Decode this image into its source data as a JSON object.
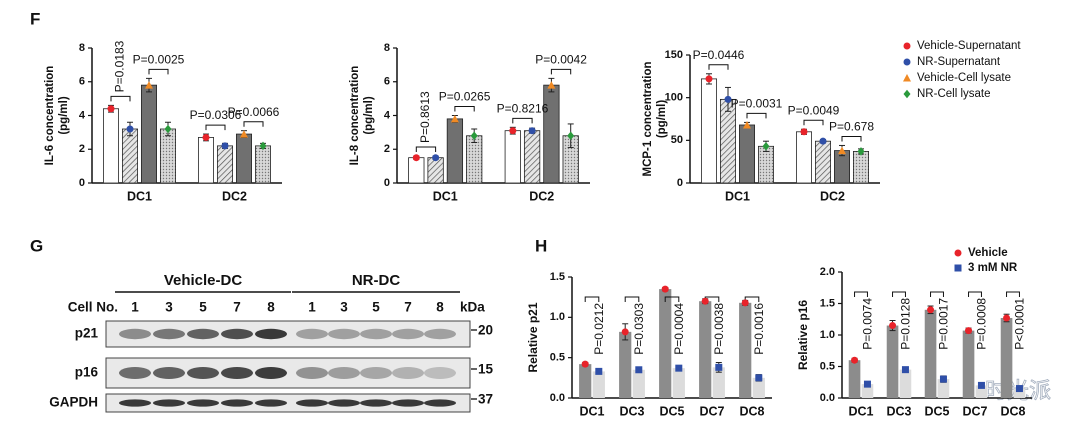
{
  "panel_labels": [
    "F",
    "G",
    "H"
  ],
  "watermark": "时光派",
  "chart_data": [
    {
      "type": "bar",
      "y_label": [
        "IL-6 concentration",
        "(pg/ml)"
      ],
      "categories": [
        "DC1",
        "DC2"
      ],
      "ylim": [
        0,
        8
      ],
      "yticks": [
        0,
        2,
        4,
        6,
        8
      ],
      "series": [
        {
          "color": "#e8232a",
          "fill": "#ffffff",
          "marker": "circle",
          "values": [
            4.4,
            2.7
          ],
          "errors": [
            0.2,
            0.2
          ]
        },
        {
          "color": "#2f4fa8",
          "fill": "hatched",
          "marker": "circle",
          "values": [
            3.2,
            2.2
          ],
          "errors": [
            0.4,
            0.15
          ]
        },
        {
          "color": "#f08a24",
          "fill": "#707070",
          "marker": "triangle",
          "values": [
            5.8,
            2.9
          ],
          "errors": [
            0.4,
            0.2
          ]
        },
        {
          "color": "#2a9a3c",
          "fill": "dotted",
          "marker": "diamond",
          "values": [
            3.2,
            2.2
          ],
          "errors": [
            0.4,
            0.15
          ]
        }
      ],
      "annotations": [
        "P=0.0183",
        "P=0.0025",
        "P=0.0306",
        "P=0.0066"
      ]
    },
    {
      "type": "bar",
      "y_label": [
        "IL-8 concentration",
        "(pg/ml)"
      ],
      "categories": [
        "DC1",
        "DC2"
      ],
      "ylim": [
        0,
        8
      ],
      "yticks": [
        0,
        2,
        4,
        6,
        8
      ],
      "series": [
        {
          "color": "#e8232a",
          "fill": "#ffffff",
          "marker": "circle",
          "values": [
            1.5,
            3.1
          ],
          "errors": [
            0.1,
            0.2
          ]
        },
        {
          "color": "#2f4fa8",
          "fill": "hatched",
          "marker": "circle",
          "values": [
            1.5,
            3.1
          ],
          "errors": [
            0.1,
            0.15
          ]
        },
        {
          "color": "#f08a24",
          "fill": "#707070",
          "marker": "triangle",
          "values": [
            3.8,
            5.8
          ],
          "errors": [
            0.2,
            0.4
          ]
        },
        {
          "color": "#2a9a3c",
          "fill": "dotted",
          "marker": "diamond",
          "values": [
            2.8,
            2.8
          ],
          "errors": [
            0.4,
            0.7
          ]
        }
      ],
      "annotations": [
        "P=0.8613",
        "P=0.0265",
        "P=0.8216",
        "P=0.0042"
      ]
    },
    {
      "type": "bar",
      "y_label": [
        "MCP-1 concentration",
        "(pg/ml)"
      ],
      "categories": [
        "DC1",
        "DC2"
      ],
      "ylim": [
        0,
        150
      ],
      "yticks": [
        0,
        50,
        100,
        150
      ],
      "legend": "right",
      "series": [
        {
          "name": "Vehicle-Supernatant",
          "color": "#e8232a",
          "fill": "#ffffff",
          "marker": "circle",
          "values": [
            122,
            60
          ],
          "errors": [
            6,
            3
          ]
        },
        {
          "name": "NR-Supernatant",
          "color": "#2f4fa8",
          "fill": "hatched",
          "marker": "circle",
          "values": [
            98,
            49
          ],
          "errors": [
            14,
            2
          ]
        },
        {
          "name": "Vehicle-Cell lysate",
          "color": "#f08a24",
          "fill": "#707070",
          "marker": "triangle",
          "values": [
            68,
            38
          ],
          "errors": [
            3,
            6
          ]
        },
        {
          "name": "NR-Cell lysate",
          "color": "#2a9a3c",
          "fill": "dotted",
          "marker": "diamond",
          "values": [
            43,
            37
          ],
          "errors": [
            6,
            3
          ]
        }
      ],
      "annotations": [
        "P=0.0446",
        "P=0.0031",
        "P=0.0049",
        "P=0.678"
      ]
    },
    {
      "type": "bar",
      "y_label": "Relative p21",
      "categories": [
        "DC1",
        "DC3",
        "DC5",
        "DC7",
        "DC8"
      ],
      "ylim": [
        0,
        1.5
      ],
      "yticks": [
        {
          "value": 0,
          "label": "0.0"
        },
        0.5,
        {
          "value": 1,
          "label": "1.0"
        },
        1.5
      ],
      "series": [
        {
          "color": "#e8232a",
          "fill": "#8c8c8c",
          "marker": "circle",
          "values": [
            0.42,
            0.82,
            1.35,
            1.2,
            1.18
          ],
          "errors": [
            0.02,
            0.1,
            0.02,
            0.03,
            0.03
          ]
        },
        {
          "color": "#2f4fa8",
          "fill": "#dcdcdc",
          "marker": "square",
          "values": [
            0.33,
            0.35,
            0.37,
            0.38,
            0.25
          ],
          "errors": [
            0.02,
            0.02,
            0.02,
            0.06,
            0.04
          ]
        }
      ],
      "annotations": [
        "P=0.0212",
        "P=0.0303",
        "P=0.0004",
        "P=0.0038",
        "P=0.0016"
      ]
    },
    {
      "type": "bar",
      "y_label": "Relative p16",
      "categories": [
        "DC1",
        "DC3",
        "DC5",
        "DC7",
        "DC8"
      ],
      "ylim": [
        0,
        2
      ],
      "yticks": [
        {
          "value": 0,
          "label": "0.0"
        },
        0.5,
        {
          "value": 1,
          "label": "1.0"
        },
        1.5,
        {
          "value": 2,
          "label": "2.0"
        }
      ],
      "legend": "upper right",
      "series": [
        {
          "name": "Vehicle",
          "color": "#e8232a",
          "fill": "#8c8c8c",
          "marker": "circle",
          "values": [
            0.6,
            1.15,
            1.4,
            1.07,
            1.27
          ],
          "errors": [
            0.03,
            0.08,
            0.06,
            0.04,
            0.06
          ]
        },
        {
          "name": "3 mM NR",
          "color": "#2f4fa8",
          "fill": "#dcdcdc",
          "marker": "square",
          "values": [
            0.22,
            0.45,
            0.3,
            0.2,
            0.15
          ],
          "errors": [
            0.02,
            0.03,
            0.05,
            0.02,
            0.02
          ]
        }
      ],
      "annotations": [
        "P=0.0074",
        "P=0.0128",
        "P=0.0017",
        "P=0.0008",
        "P<0.0001"
      ]
    }
  ],
  "blot": {
    "groups": [
      "Vehicle-DC",
      "NR-DC"
    ],
    "cell_no_label": "Cell No.",
    "lanes": [
      1,
      3,
      5,
      7,
      8,
      1,
      3,
      5,
      7,
      8
    ],
    "kda_label": "kDa",
    "rows": [
      {
        "name": "p21",
        "kda": 20
      },
      {
        "name": "p16",
        "kda": 15
      },
      {
        "name": "GAPDH",
        "kda": 37
      }
    ]
  }
}
